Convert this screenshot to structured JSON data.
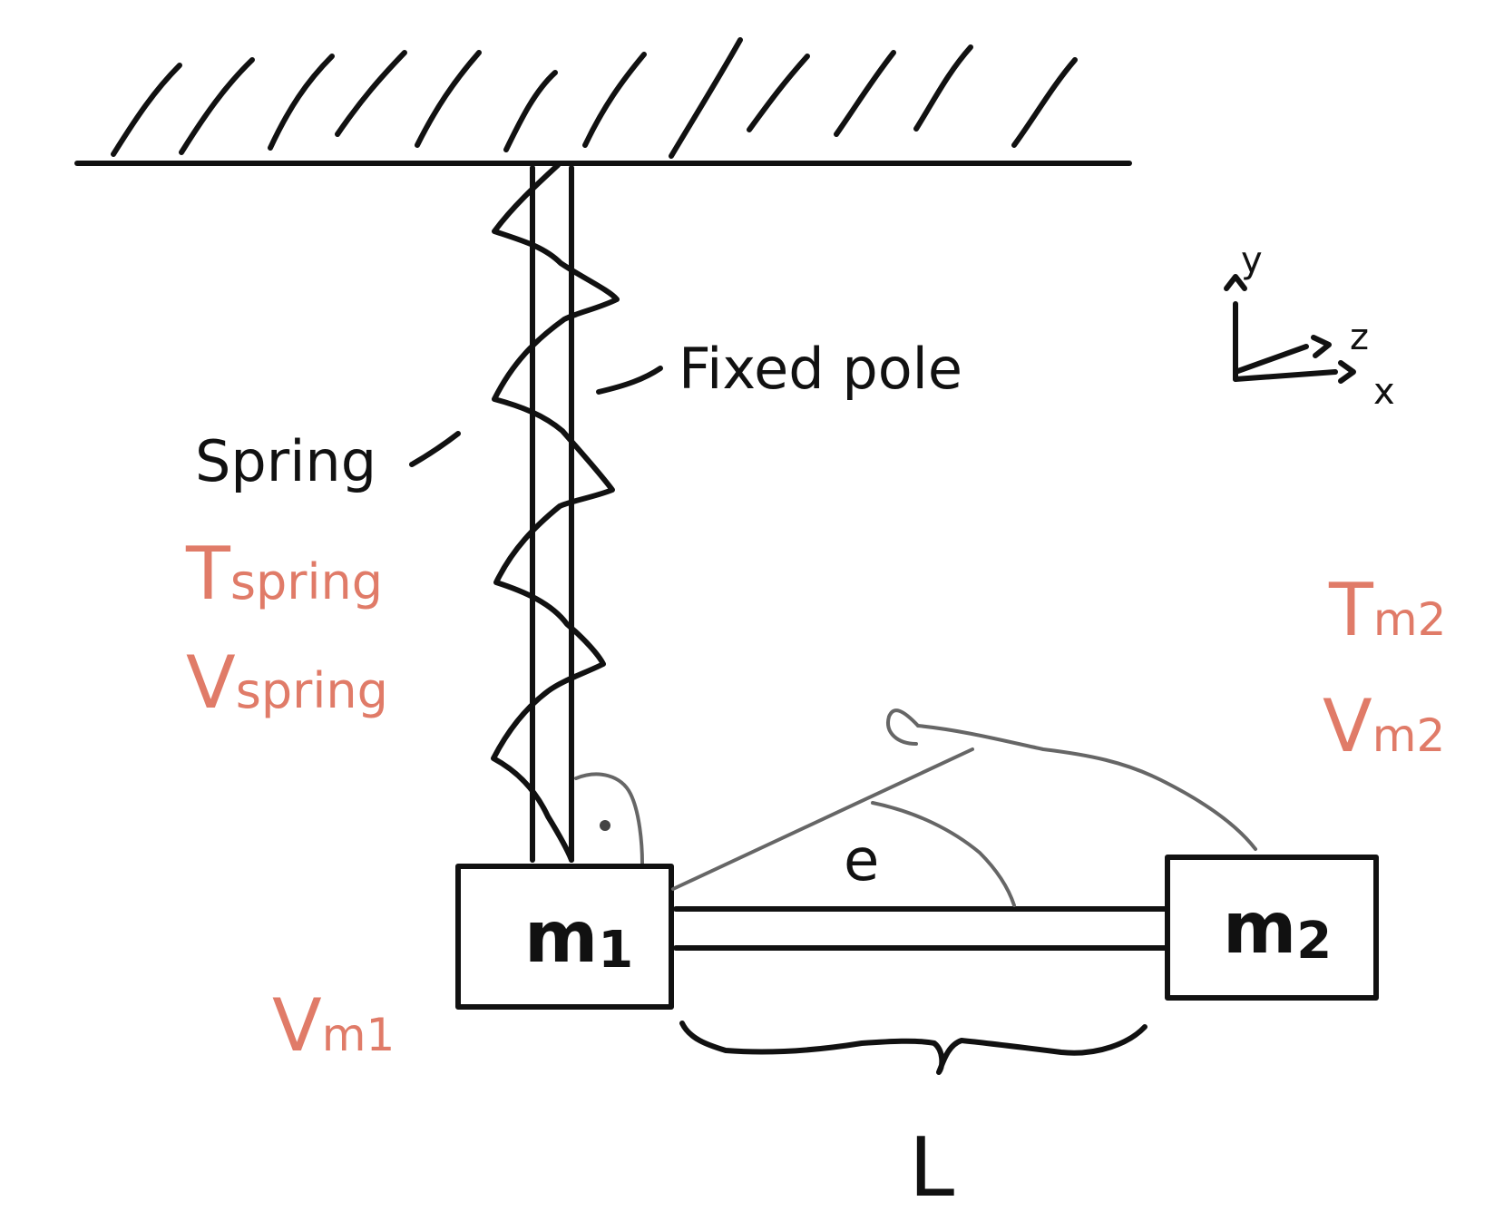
{
  "labels": {
    "fixed_pole": "Fixed pole",
    "spring": "Spring",
    "mass1": "m",
    "mass1_sub": "1",
    "mass2": "m",
    "mass2_sub": "2",
    "angle": "e",
    "length": "L",
    "axis_x": "x",
    "axis_y": "y",
    "axis_z": "z"
  },
  "energy_terms": {
    "t_spring": "T",
    "t_spring_sub": "spring",
    "v_spring": "V",
    "v_spring_sub": "spring",
    "t_m2": "T",
    "t_m2_sub": "m2",
    "v_m2": "V",
    "v_m2_sub": "m2",
    "v_m1": "V",
    "v_m1_sub": "m1"
  },
  "colors": {
    "ink": "#111111",
    "annotation": "#E07B68",
    "construction": "#666666"
  }
}
